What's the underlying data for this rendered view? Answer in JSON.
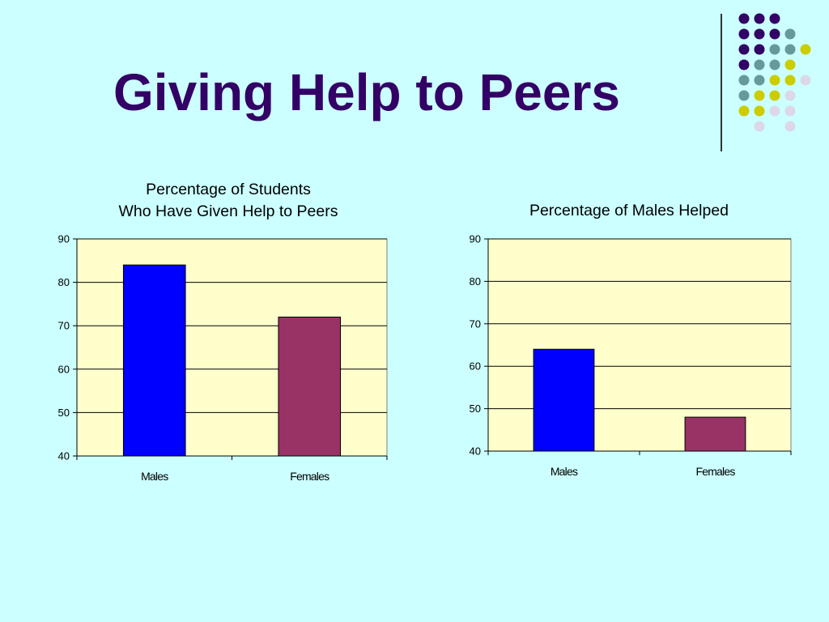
{
  "slide": {
    "title": "Giving Help to Peers",
    "background": "#ccffff",
    "title_color": "#330066"
  },
  "decoration": {
    "dot_colors": {
      "purple": "#330066",
      "teal": "#669999",
      "yellow": "#cccc00",
      "lavender": "#dcd8e8"
    }
  },
  "chart_data": [
    {
      "type": "bar",
      "title_lines": [
        "Percentage of Students",
        "Who Have Given Help to Peers"
      ],
      "categories": [
        "Males",
        "Females"
      ],
      "values": [
        84,
        72
      ],
      "bar_colors": [
        "#0000ff",
        "#993366"
      ],
      "ylim": [
        40,
        90
      ],
      "yticks": [
        40,
        50,
        60,
        70,
        80,
        90
      ],
      "xlabel": "",
      "ylabel": "",
      "grid": true,
      "legend": "none",
      "plot_background": "#ffffcc"
    },
    {
      "type": "bar",
      "title_lines": [
        "Percentage of Males Helped"
      ],
      "categories": [
        "Males",
        "Females"
      ],
      "values": [
        64,
        48
      ],
      "bar_colors": [
        "#0000ff",
        "#993366"
      ],
      "ylim": [
        40,
        90
      ],
      "yticks": [
        40,
        50,
        60,
        70,
        80,
        90
      ],
      "xlabel": "",
      "ylabel": "",
      "grid": true,
      "legend": "none",
      "plot_background": "#ffffcc"
    }
  ]
}
